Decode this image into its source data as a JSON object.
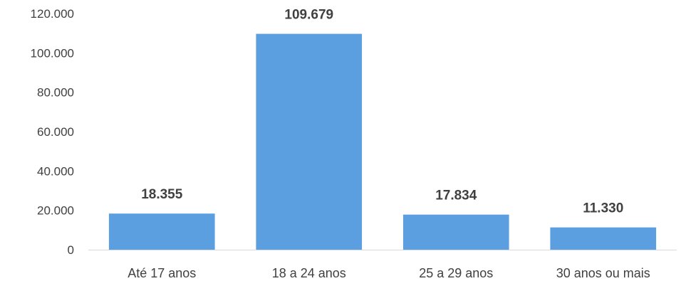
{
  "chart_data": {
    "type": "bar",
    "categories": [
      "Até 17 anos",
      "18 a 24 anos",
      "25 a 29 anos",
      "30 anos ou mais"
    ],
    "values": [
      18355,
      109679,
      17834,
      11330
    ],
    "data_labels": [
      "18.355",
      "109.679",
      "17.834",
      "11.330"
    ],
    "ylim": [
      0,
      120000
    ],
    "yticks": [
      0,
      20000,
      40000,
      60000,
      80000,
      100000,
      120000
    ],
    "ytick_labels": [
      "0",
      "20.000",
      "40.000",
      "60.000",
      "80.000",
      "100.000",
      "120.000"
    ],
    "bar_color": "#5B9FE0",
    "grid": false,
    "title": "",
    "xlabel": "",
    "ylabel": ""
  }
}
